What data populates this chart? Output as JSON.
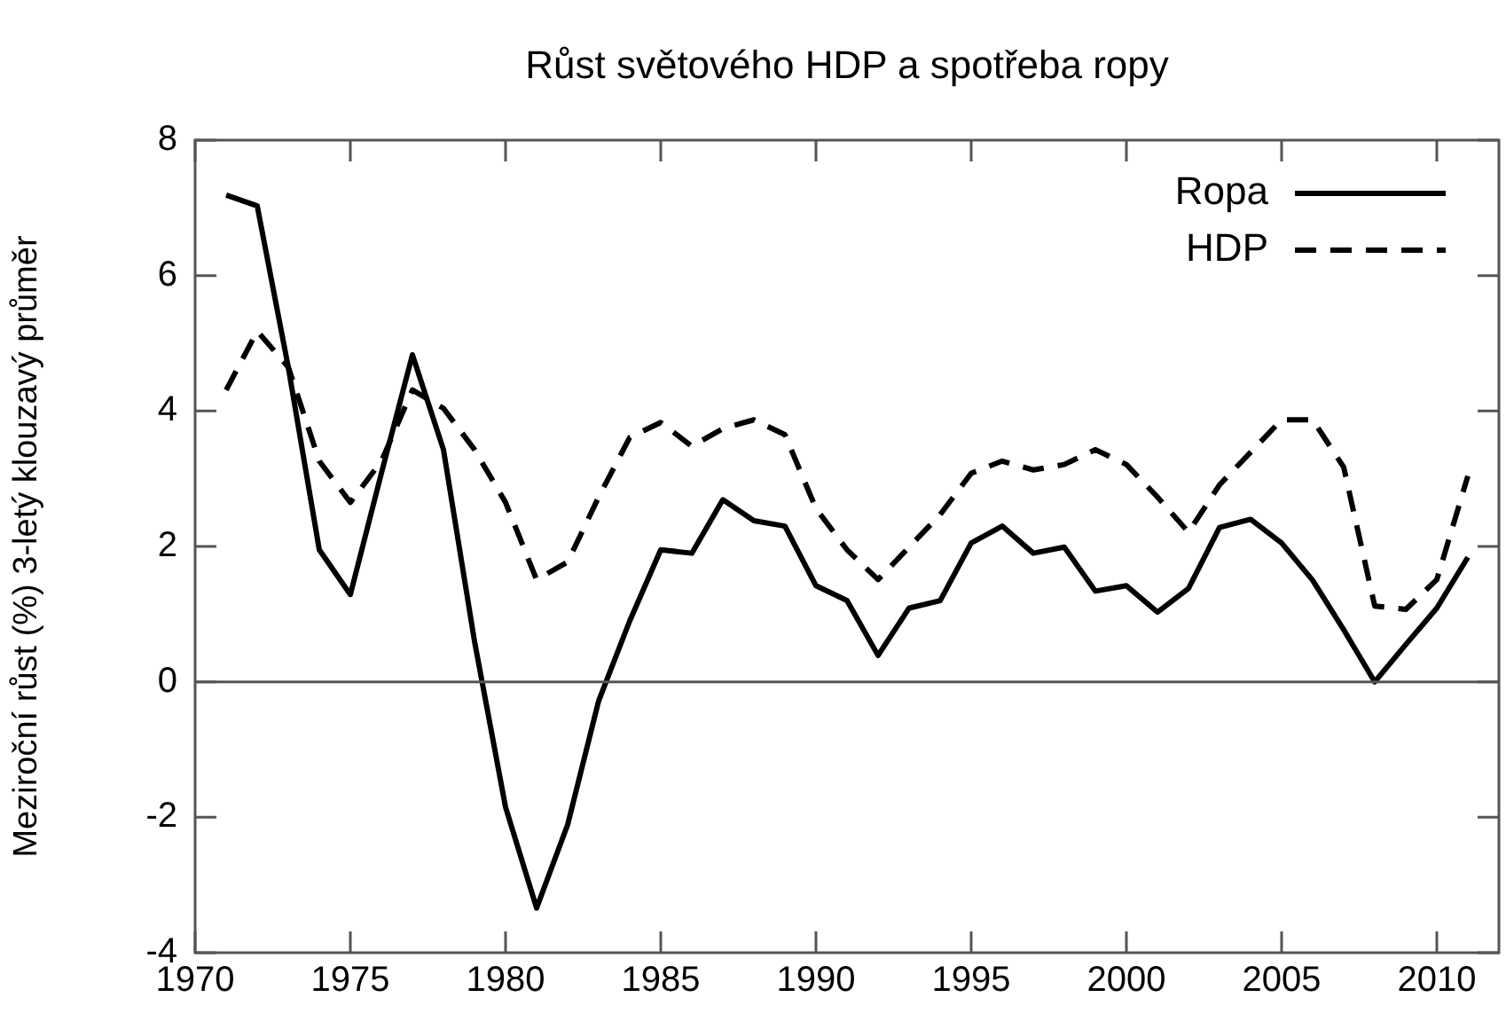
{
  "chart_data": {
    "type": "line",
    "title": "Růst světového HDP a spotřeba ropy",
    "ylabel": "Meziroční růst (%) 3-letý klouzavý průměr",
    "x": [
      1971,
      1972,
      1973,
      1974,
      1975,
      1976,
      1977,
      1978,
      1979,
      1980,
      1981,
      1982,
      1983,
      1984,
      1985,
      1986,
      1987,
      1988,
      1989,
      1990,
      1991,
      1992,
      1993,
      1994,
      1995,
      1996,
      1997,
      1998,
      1999,
      2000,
      2001,
      2002,
      2003,
      2004,
      2005,
      2006,
      2007,
      2008,
      2009,
      2010,
      2011
    ],
    "series": [
      {
        "name": "Ropa",
        "color": "#000000",
        "line_style": "solid",
        "values": [
          7.19,
          7.03,
          4.65,
          1.95,
          1.29,
          3.08,
          4.83,
          3.43,
          0.6,
          -1.85,
          -3.34,
          -2.11,
          -0.28,
          0.9,
          1.95,
          1.9,
          2.69,
          2.38,
          2.3,
          1.42,
          1.2,
          0.39,
          1.09,
          1.2,
          2.05,
          2.3,
          1.9,
          1.99,
          1.34,
          1.42,
          1.03,
          1.38,
          2.28,
          2.4,
          2.05,
          1.5,
          0.77,
          0,
          0.55,
          1.09,
          1.84
        ]
      },
      {
        "name": "HDP",
        "color": "#000000",
        "line_style": "dashed",
        "values": [
          4.31,
          5.18,
          4.65,
          3.26,
          2.65,
          3.26,
          4.31,
          4.04,
          3.43,
          2.65,
          1.51,
          1.77,
          2.73,
          3.61,
          3.83,
          3.48,
          3.74,
          3.87,
          3.65,
          2.56,
          1.95,
          1.51,
          1.99,
          2.47,
          3.08,
          3.26,
          3.13,
          3.21,
          3.43,
          3.21,
          2.73,
          2.21,
          2.91,
          3.39,
          3.87,
          3.87,
          3.17,
          1.12,
          1.07,
          1.51,
          3.04
        ]
      }
    ],
    "xlim": [
      1970,
      2012
    ],
    "xticks": [
      1970,
      1975,
      1980,
      1985,
      1990,
      1995,
      2000,
      2005,
      2010
    ],
    "ylim": [
      -4,
      8
    ],
    "yticks": [
      -4,
      -2,
      0,
      2,
      4,
      6,
      8
    ],
    "ref_lines": [
      {
        "axis": "y",
        "value": 0,
        "color": "#555555"
      }
    ],
    "grid": false,
    "legend": "top right",
    "marker": "none"
  }
}
